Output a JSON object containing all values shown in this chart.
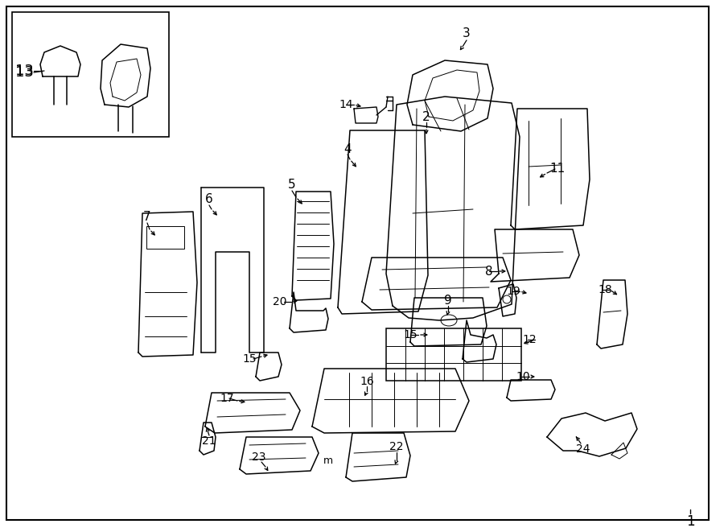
{
  "background_color": "#ffffff",
  "fig_width": 9.0,
  "fig_height": 6.61,
  "dpi": 100
}
